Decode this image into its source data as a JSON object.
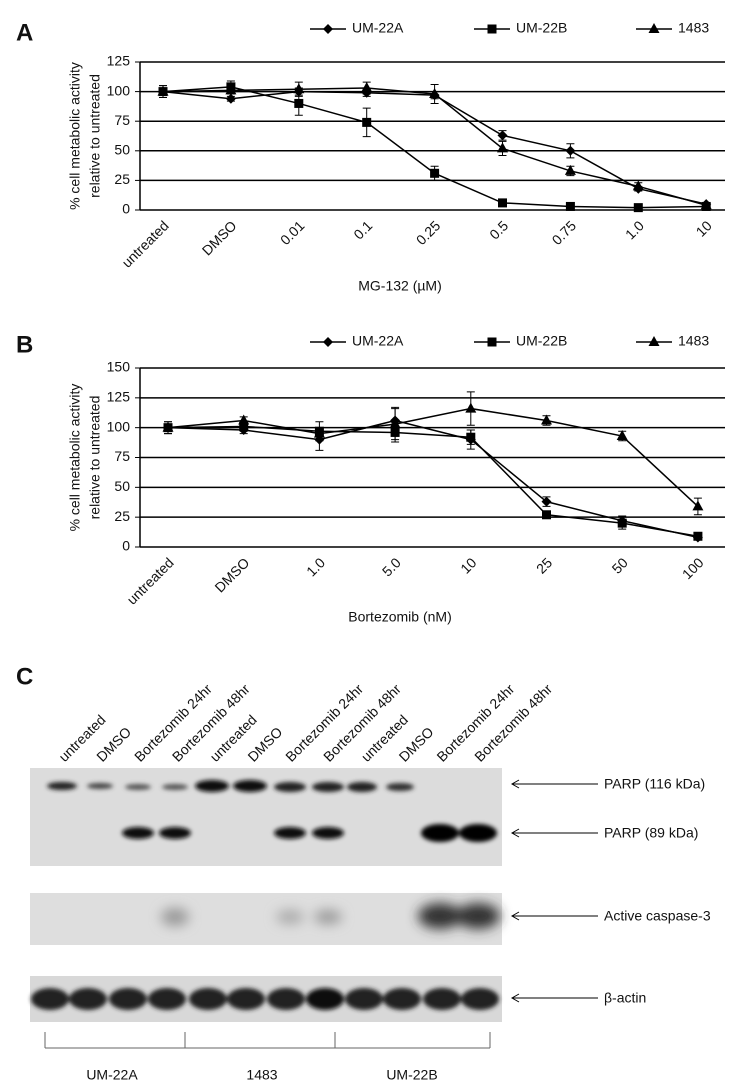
{
  "chart_data": [
    {
      "type": "line",
      "panel_label": "A",
      "xlabel": "MG-132  (µM)",
      "ylabel": [
        "% cell metabolic activity",
        "relative to untreated"
      ],
      "categories": [
        "untreated",
        "DMSO",
        "0.01",
        "0.1",
        "0.25",
        "0.5",
        "0.75",
        "1.0",
        "10"
      ],
      "ylim": [
        0,
        125
      ],
      "yticks": [
        0,
        25,
        50,
        75,
        100,
        125
      ],
      "grid": true,
      "series": [
        {
          "name": "UM-22A",
          "color": "#000000",
          "marker": "diamond",
          "values": [
            100,
            94,
            100,
            99,
            97,
            63,
            50,
            18,
            5
          ],
          "errors": [
            5,
            2,
            3,
            3,
            3,
            4,
            6,
            2,
            1
          ]
        },
        {
          "name": "UM-22B",
          "color": "#000000",
          "marker": "square",
          "values": [
            100,
            104,
            90,
            74,
            31,
            6,
            3,
            2,
            3
          ],
          "errors": [
            5,
            5,
            10,
            12,
            6,
            1,
            1,
            1,
            1
          ]
        },
        {
          "name": "1483",
          "color": "#000000",
          "marker": "triangle",
          "values": [
            100,
            101,
            102,
            103,
            98,
            52,
            33,
            20,
            4
          ],
          "errors": [
            3,
            3,
            6,
            5,
            8,
            6,
            4,
            3,
            1
          ]
        }
      ]
    },
    {
      "type": "line",
      "panel_label": "B",
      "xlabel": "Bortezomib (nM)",
      "ylabel": [
        "% cell metabolic activity",
        "relative to untreated"
      ],
      "categories": [
        "untreated",
        "DMSO",
        "1.0",
        "5.0",
        "10",
        "25",
        "50",
        "100"
      ],
      "ylim": [
        0,
        150
      ],
      "yticks": [
        0,
        25,
        50,
        75,
        100,
        125,
        150
      ],
      "grid": true,
      "series": [
        {
          "name": "UM-22A",
          "color": "#000000",
          "marker": "diamond",
          "values": [
            100,
            98,
            90,
            106,
            90,
            38,
            22,
            8
          ],
          "errors": [
            5,
            3,
            9,
            11,
            8,
            4,
            4,
            1
          ]
        },
        {
          "name": "UM-22B",
          "color": "#000000",
          "marker": "square",
          "values": [
            100,
            101,
            97,
            96,
            92,
            27,
            20,
            9
          ],
          "errors": [
            5,
            4,
            8,
            8,
            6,
            2,
            5,
            1
          ]
        },
        {
          "name": "1483",
          "color": "#000000",
          "marker": "triangle",
          "values": [
            100,
            106,
            95,
            103,
            116,
            106,
            93,
            34
          ],
          "errors": [
            3,
            3,
            5,
            13,
            14,
            4,
            4,
            7
          ]
        }
      ]
    }
  ],
  "blot": {
    "panel_label": "C",
    "lanes": [
      "untreated",
      "DMSO",
      "Bortezomib 24hr",
      "Bortezomib 48hr",
      "untreated",
      "DMSO",
      "Bortezomib 24hr",
      "Bortezomib 48hr",
      "untreated",
      "DMSO",
      "Bortezomib 24hr",
      "Bortezomib 48hr"
    ],
    "bands": [
      "PARP (116 kDa)",
      "PARP (89 kDa)",
      "Active caspase-3",
      "β-actin"
    ],
    "groups": [
      "UM-22A",
      "1483",
      "UM-22B"
    ]
  }
}
